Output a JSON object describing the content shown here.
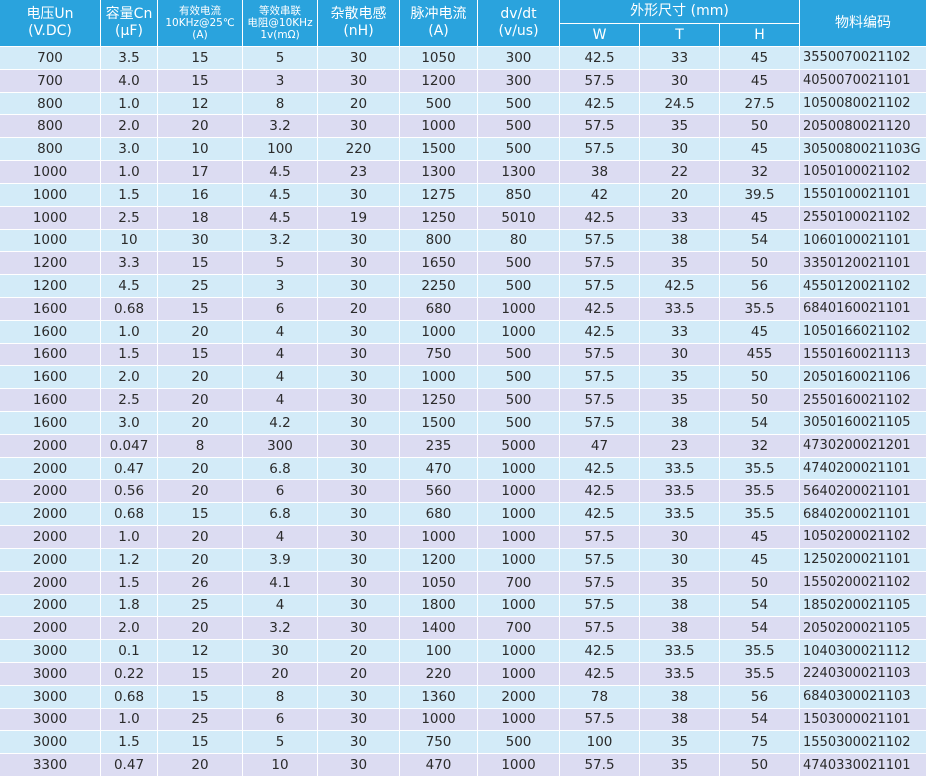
{
  "table": {
    "columns": [
      {
        "lines": [
          "电压Un",
          "(V.DC)"
        ]
      },
      {
        "lines": [
          "容量Cn",
          "(μF)"
        ]
      },
      {
        "lines": [
          "有效电流",
          "10KHz@25℃",
          "(A)"
        ]
      },
      {
        "lines": [
          "等效串联",
          "电阻@10KHz",
          "1v(mΩ)"
        ]
      },
      {
        "lines": [
          "杂散电感",
          "(nH)"
        ]
      },
      {
        "lines": [
          "脉冲电流",
          "(A)"
        ]
      },
      {
        "lines": [
          "dv/dt",
          "(v/us)"
        ]
      },
      {
        "lines": [
          "W"
        ]
      },
      {
        "lines": [
          "T"
        ]
      },
      {
        "lines": [
          "H"
        ]
      },
      {
        "lines": [
          "物料编码"
        ]
      }
    ],
    "group_header": "外形尺寸 (mm)",
    "rows": [
      [
        "700",
        "3.5",
        "15",
        "5",
        "30",
        "1050",
        "300",
        "42.5",
        "33",
        "45",
        "3550070021102"
      ],
      [
        "700",
        "4.0",
        "15",
        "3",
        "30",
        "1200",
        "300",
        "57.5",
        "30",
        "45",
        "4050070021101"
      ],
      [
        "800",
        "1.0",
        "12",
        "8",
        "20",
        "500",
        "500",
        "42.5",
        "24.5",
        "27.5",
        "1050080021102"
      ],
      [
        "800",
        "2.0",
        "20",
        "3.2",
        "30",
        "1000",
        "500",
        "57.5",
        "35",
        "50",
        "2050080021120"
      ],
      [
        "800",
        "3.0",
        "10",
        "100",
        "220",
        "1500",
        "500",
        "57.5",
        "30",
        "45",
        "3050080021103G"
      ],
      [
        "1000",
        "1.0",
        "17",
        "4.5",
        "23",
        "1300",
        "1300",
        "38",
        "22",
        "32",
        "1050100021102"
      ],
      [
        "1000",
        "1.5",
        "16",
        "4.5",
        "30",
        "1275",
        "850",
        "42",
        "20",
        "39.5",
        "1550100021101"
      ],
      [
        "1000",
        "2.5",
        "18",
        "4.5",
        "19",
        "1250",
        "5010",
        "42.5",
        "33",
        "45",
        "2550100021102"
      ],
      [
        "1000",
        "10",
        "30",
        "3.2",
        "30",
        "800",
        "80",
        "57.5",
        "38",
        "54",
        "1060100021101"
      ],
      [
        "1200",
        "3.3",
        "15",
        "5",
        "30",
        "1650",
        "500",
        "57.5",
        "35",
        "50",
        "3350120021101"
      ],
      [
        "1200",
        "4.5",
        "25",
        "3",
        "30",
        "2250",
        "500",
        "57.5",
        "42.5",
        "56",
        "4550120021102"
      ],
      [
        "1600",
        "0.68",
        "15",
        "6",
        "20",
        "680",
        "1000",
        "42.5",
        "33.5",
        "35.5",
        "6840160021101"
      ],
      [
        "1600",
        "1.0",
        "20",
        "4",
        "30",
        "1000",
        "1000",
        "42.5",
        "33",
        "45",
        "1050166021102"
      ],
      [
        "1600",
        "1.5",
        "15",
        "4",
        "30",
        "750",
        "500",
        "57.5",
        "30",
        "455",
        "1550160021113"
      ],
      [
        "1600",
        "2.0",
        "20",
        "4",
        "30",
        "1000",
        "500",
        "57.5",
        "35",
        "50",
        "2050160021106"
      ],
      [
        "1600",
        "2.5",
        "20",
        "4",
        "30",
        "1250",
        "500",
        "57.5",
        "35",
        "50",
        "2550160021102"
      ],
      [
        "1600",
        "3.0",
        "20",
        "4.2",
        "30",
        "1500",
        "500",
        "57.5",
        "38",
        "54",
        "3050160021105"
      ],
      [
        "2000",
        "0.047",
        "8",
        "300",
        "30",
        "235",
        "5000",
        "47",
        "23",
        "32",
        "4730200021201"
      ],
      [
        "2000",
        "0.47",
        "20",
        "6.8",
        "30",
        "470",
        "1000",
        "42.5",
        "33.5",
        "35.5",
        "4740200021101"
      ],
      [
        "2000",
        "0.56",
        "20",
        "6",
        "30",
        "560",
        "1000",
        "42.5",
        "33.5",
        "35.5",
        "5640200021101"
      ],
      [
        "2000",
        "0.68",
        "15",
        "6.8",
        "30",
        "680",
        "1000",
        "42.5",
        "33.5",
        "35.5",
        "6840200021101"
      ],
      [
        "2000",
        "1.0",
        "20",
        "4",
        "30",
        "1000",
        "1000",
        "57.5",
        "30",
        "45",
        "1050200021102"
      ],
      [
        "2000",
        "1.2",
        "20",
        "3.9",
        "30",
        "1200",
        "1000",
        "57.5",
        "30",
        "45",
        "1250200021101"
      ],
      [
        "2000",
        "1.5",
        "26",
        "4.1",
        "30",
        "1050",
        "700",
        "57.5",
        "35",
        "50",
        "1550200021102"
      ],
      [
        "2000",
        "1.8",
        "25",
        "4",
        "30",
        "1800",
        "1000",
        "57.5",
        "38",
        "54",
        "1850200021105"
      ],
      [
        "2000",
        "2.0",
        "20",
        "3.2",
        "30",
        "1400",
        "700",
        "57.5",
        "38",
        "54",
        "2050200021105"
      ],
      [
        "3000",
        "0.1",
        "12",
        "30",
        "20",
        "100",
        "1000",
        "42.5",
        "33.5",
        "35.5",
        "1040300021112"
      ],
      [
        "3000",
        "0.22",
        "15",
        "20",
        "20",
        "220",
        "1000",
        "42.5",
        "33.5",
        "35.5",
        "2240300021103"
      ],
      [
        "3000",
        "0.68",
        "15",
        "8",
        "30",
        "1360",
        "2000",
        "78",
        "38",
        "56",
        "6840300021103"
      ],
      [
        "3000",
        "1.0",
        "25",
        "6",
        "30",
        "1000",
        "1000",
        "57.5",
        "38",
        "54",
        "1503000021101"
      ],
      [
        "3000",
        "1.5",
        "15",
        "5",
        "30",
        "750",
        "500",
        "100",
        "35",
        "75",
        "1550300021102"
      ],
      [
        "3300",
        "0.47",
        "20",
        "10",
        "30",
        "470",
        "1000",
        "57.5",
        "35",
        "50",
        "4740330021101"
      ]
    ]
  }
}
